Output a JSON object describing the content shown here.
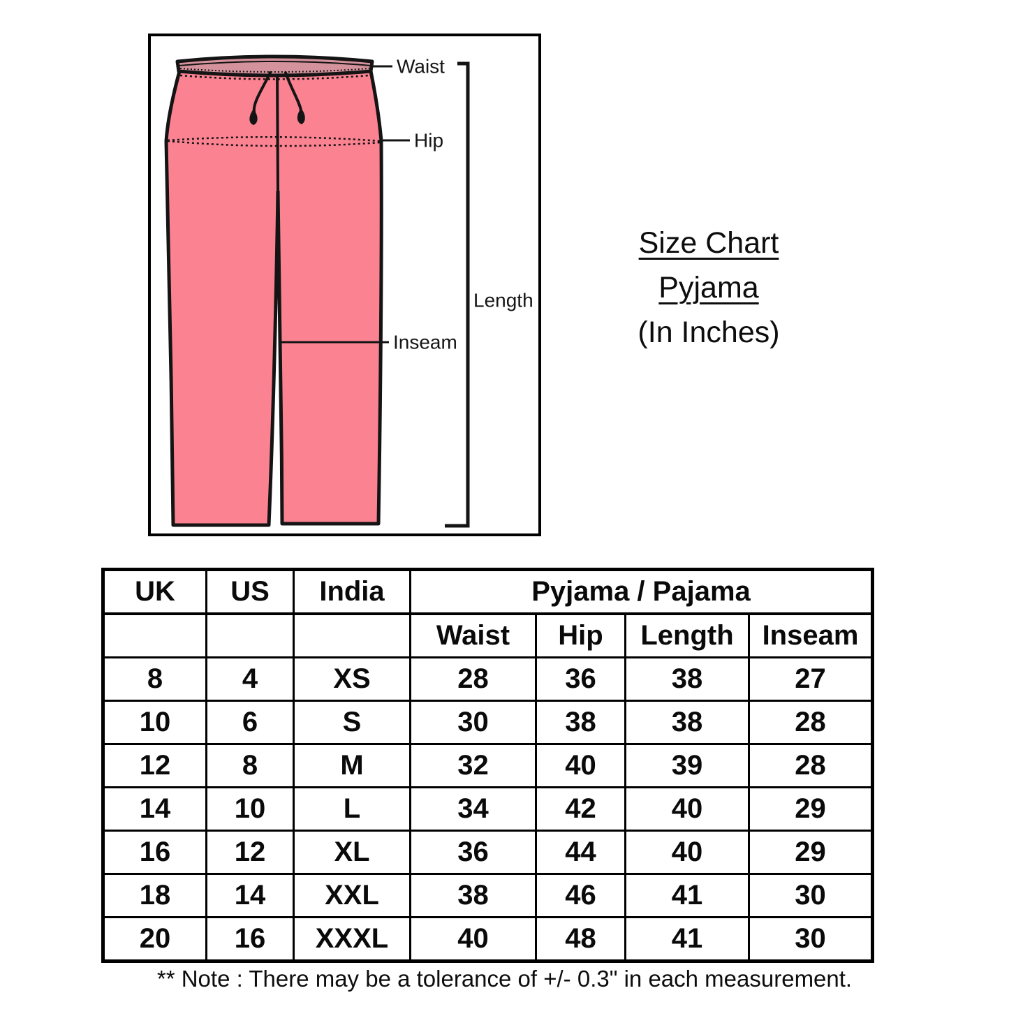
{
  "diagram": {
    "labels": {
      "waist": "Waist",
      "hip": "Hip",
      "length": "Length",
      "inseam": "Inseam"
    },
    "colors": {
      "pants_pink": "#FB8291",
      "waistband_pink": "#D4929C"
    }
  },
  "title": {
    "line1": "Size Chart",
    "line2": "Pyjama",
    "line3": "(In Inches)"
  },
  "table": {
    "header": {
      "uk": "UK",
      "us": "US",
      "india": "India",
      "group": "Pyjama / Pajama",
      "waist": "Waist",
      "hip": "Hip",
      "length": "Length",
      "inseam": "Inseam"
    },
    "rows": [
      [
        "8",
        "4",
        "XS",
        "28",
        "36",
        "38",
        "27"
      ],
      [
        "10",
        "6",
        "S",
        "30",
        "38",
        "38",
        "28"
      ],
      [
        "12",
        "8",
        "M",
        "32",
        "40",
        "39",
        "28"
      ],
      [
        "14",
        "10",
        "L",
        "34",
        "42",
        "40",
        "29"
      ],
      [
        "16",
        "12",
        "XL",
        "36",
        "44",
        "40",
        "29"
      ],
      [
        "18",
        "14",
        "XXL",
        "38",
        "46",
        "41",
        "30"
      ],
      [
        "20",
        "16",
        "XXXL",
        "40",
        "48",
        "41",
        "30"
      ]
    ]
  },
  "note": "** Note : There may be a tolerance of +/- 0.3\" in each measurement."
}
